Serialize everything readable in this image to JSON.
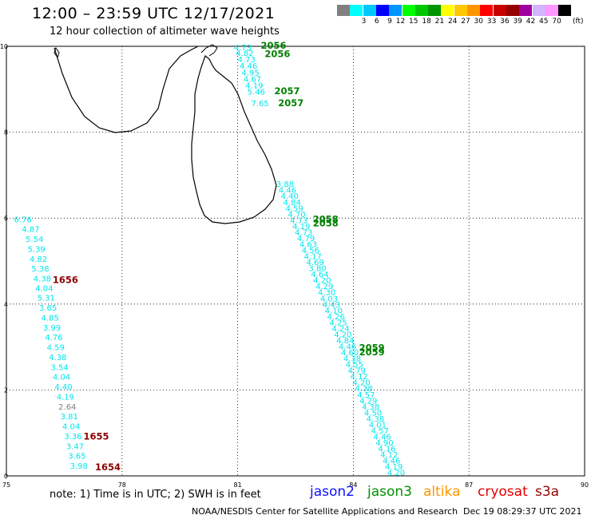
{
  "header": {
    "title": "12:00 – 23:59 UTC 12/17/2021",
    "subtitle": "12 hour collection of altimeter wave heights"
  },
  "colorbar": {
    "unit": "(ft)",
    "swatches": [
      {
        "color": "#808080",
        "label": ""
      },
      {
        "color": "#00ffff",
        "label": "3"
      },
      {
        "color": "#00c8ff",
        "label": "6"
      },
      {
        "color": "#0000ff",
        "label": "9"
      },
      {
        "color": "#0096ff",
        "label": "12"
      },
      {
        "color": "#00ff00",
        "label": "15"
      },
      {
        "color": "#00c800",
        "label": "18"
      },
      {
        "color": "#009600",
        "label": "21"
      },
      {
        "color": "#ffff00",
        "label": "24"
      },
      {
        "color": "#ffc800",
        "label": "27"
      },
      {
        "color": "#ff9600",
        "label": "30"
      },
      {
        "color": "#ff0000",
        "label": "33"
      },
      {
        "color": "#c80000",
        "label": "36"
      },
      {
        "color": "#960000",
        "label": "39"
      },
      {
        "color": "#a000a0",
        "label": "42"
      },
      {
        "color": "#d2b4ff",
        "label": "45"
      },
      {
        "color": "#ff96ff",
        "label": "70"
      },
      {
        "color": "#000000",
        "label": ""
      }
    ]
  },
  "axes": {
    "lon_min": 75,
    "lon_max": 90,
    "lat_min": 0,
    "lat_max": 10,
    "x_ticks": [
      {
        "v": 75,
        "t": "75"
      },
      {
        "v": 78,
        "t": "78"
      },
      {
        "v": 81,
        "t": "81"
      },
      {
        "v": 84,
        "t": "84"
      },
      {
        "v": 87,
        "t": "87"
      },
      {
        "v": 90,
        "t": "90"
      }
    ],
    "y_ticks": [
      {
        "v": 0,
        "t": "0"
      },
      {
        "v": 2,
        "t": "2"
      },
      {
        "v": 4,
        "t": "4"
      },
      {
        "v": 6,
        "t": "6"
      },
      {
        "v": 8,
        "t": "8"
      },
      {
        "v": 10,
        "t": "10"
      }
    ]
  },
  "colors": {
    "swh": "#00e5ee",
    "swh_low": "#808080",
    "jason3_time": "#008000",
    "cryosat_time": "#8b0000"
  },
  "tracks": {
    "west_track": [
      {
        "lon": 75.2,
        "lat": 5.98,
        "v": "6.76"
      },
      {
        "lon": 75.4,
        "lat": 5.75,
        "v": "4.87"
      },
      {
        "lon": 75.5,
        "lat": 5.52,
        "v": "5.54"
      },
      {
        "lon": 75.55,
        "lat": 5.29,
        "v": "5.39"
      },
      {
        "lon": 75.6,
        "lat": 5.06,
        "v": "4.82"
      },
      {
        "lon": 75.65,
        "lat": 4.83,
        "v": "5.38"
      },
      {
        "lon": 75.7,
        "lat": 4.6,
        "v": "4.38"
      },
      {
        "lon": 75.75,
        "lat": 4.38,
        "v": "4.04"
      },
      {
        "lon": 75.8,
        "lat": 4.15,
        "v": "5.31"
      },
      {
        "lon": 75.85,
        "lat": 3.92,
        "v": "3.65"
      },
      {
        "lon": 75.9,
        "lat": 3.69,
        "v": "4.85"
      },
      {
        "lon": 75.95,
        "lat": 3.46,
        "v": "3.99"
      },
      {
        "lon": 76.0,
        "lat": 3.23,
        "v": "4.76"
      },
      {
        "lon": 76.05,
        "lat": 3.0,
        "v": "4.59"
      },
      {
        "lon": 76.1,
        "lat": 2.77,
        "v": "4.38"
      },
      {
        "lon": 76.15,
        "lat": 2.54,
        "v": "3.54"
      },
      {
        "lon": 76.2,
        "lat": 2.31,
        "v": "4.04"
      },
      {
        "lon": 76.25,
        "lat": 2.08,
        "v": "4.40"
      },
      {
        "lon": 76.3,
        "lat": 1.85,
        "v": "4.19"
      },
      {
        "lon": 76.35,
        "lat": 1.62,
        "v": "2.64",
        "low": true
      },
      {
        "lon": 76.4,
        "lat": 1.39,
        "v": "3.81"
      },
      {
        "lon": 76.45,
        "lat": 1.16,
        "v": "4.04"
      },
      {
        "lon": 76.5,
        "lat": 0.93,
        "v": "3.36"
      },
      {
        "lon": 76.55,
        "lat": 0.7,
        "v": "3.47"
      },
      {
        "lon": 76.6,
        "lat": 0.47,
        "v": "3.65"
      },
      {
        "lon": 76.65,
        "lat": 0.24,
        "v": "3.98"
      }
    ],
    "north_track": [
      {
        "lon": 80.9,
        "lat": 9.98,
        "v": "4.73"
      },
      {
        "lon": 80.95,
        "lat": 9.85,
        "v": "4.82"
      },
      {
        "lon": 81.0,
        "lat": 9.7,
        "v": "4.73"
      },
      {
        "lon": 81.05,
        "lat": 9.55,
        "v": "4.46"
      },
      {
        "lon": 81.1,
        "lat": 9.4,
        "v": "4.95"
      },
      {
        "lon": 81.15,
        "lat": 9.25,
        "v": "4.67"
      },
      {
        "lon": 81.2,
        "lat": 9.1,
        "v": "4.19"
      },
      {
        "lon": 81.25,
        "lat": 8.95,
        "v": "5.46"
      },
      {
        "lon": 81.35,
        "lat": 8.68,
        "v": "7.65"
      }
    ],
    "east_track": [
      {
        "lon": 82.0,
        "lat": 6.8,
        "v": "3.88"
      },
      {
        "lon": 82.06,
        "lat": 6.66,
        "v": "4.46"
      },
      {
        "lon": 82.12,
        "lat": 6.52,
        "v": "4.40"
      },
      {
        "lon": 82.18,
        "lat": 6.38,
        "v": "4.84"
      },
      {
        "lon": 82.24,
        "lat": 6.24,
        "v": "4.59"
      },
      {
        "lon": 82.3,
        "lat": 6.1,
        "v": "4.70"
      },
      {
        "lon": 82.36,
        "lat": 5.96,
        "v": "4.73"
      },
      {
        "lon": 82.42,
        "lat": 5.82,
        "v": "4.19"
      },
      {
        "lon": 82.48,
        "lat": 5.68,
        "v": "4.73"
      },
      {
        "lon": 82.54,
        "lat": 5.54,
        "v": "4.79"
      },
      {
        "lon": 82.6,
        "lat": 5.4,
        "v": "4.63"
      },
      {
        "lon": 82.66,
        "lat": 5.26,
        "v": "4.56"
      },
      {
        "lon": 82.72,
        "lat": 5.12,
        "v": "4.17"
      },
      {
        "lon": 82.78,
        "lat": 4.98,
        "v": "4.69"
      },
      {
        "lon": 82.84,
        "lat": 4.84,
        "v": "3.80"
      },
      {
        "lon": 82.9,
        "lat": 4.7,
        "v": "4.64"
      },
      {
        "lon": 82.96,
        "lat": 4.56,
        "v": "4.20"
      },
      {
        "lon": 83.02,
        "lat": 4.42,
        "v": "4.29"
      },
      {
        "lon": 83.08,
        "lat": 4.28,
        "v": "4.30"
      },
      {
        "lon": 83.14,
        "lat": 4.14,
        "v": "4.03"
      },
      {
        "lon": 83.2,
        "lat": 4.0,
        "v": "4.43"
      },
      {
        "lon": 83.26,
        "lat": 3.86,
        "v": "4.10"
      },
      {
        "lon": 83.32,
        "lat": 3.72,
        "v": "4.26"
      },
      {
        "lon": 83.38,
        "lat": 3.58,
        "v": "4.25"
      },
      {
        "lon": 83.44,
        "lat": 3.44,
        "v": "4.24"
      },
      {
        "lon": 83.5,
        "lat": 3.3,
        "v": "4.20"
      },
      {
        "lon": 83.56,
        "lat": 3.16,
        "v": "4.84"
      },
      {
        "lon": 83.62,
        "lat": 3.02,
        "v": "4.46"
      },
      {
        "lon": 83.68,
        "lat": 2.88,
        "v": "4.60"
      },
      {
        "lon": 83.74,
        "lat": 2.74,
        "v": "4.38"
      },
      {
        "lon": 83.8,
        "lat": 2.6,
        "v": "4.55"
      },
      {
        "lon": 83.86,
        "lat": 2.46,
        "v": "4.79"
      },
      {
        "lon": 83.92,
        "lat": 2.32,
        "v": "4.12"
      },
      {
        "lon": 83.98,
        "lat": 2.18,
        "v": "4.20"
      },
      {
        "lon": 84.04,
        "lat": 2.04,
        "v": "4.38"
      },
      {
        "lon": 84.1,
        "lat": 1.9,
        "v": "4.57"
      },
      {
        "lon": 84.16,
        "lat": 1.76,
        "v": "4.29"
      },
      {
        "lon": 84.22,
        "lat": 1.62,
        "v": "4.38"
      },
      {
        "lon": 84.28,
        "lat": 1.48,
        "v": "4.50"
      },
      {
        "lon": 84.34,
        "lat": 1.34,
        "v": "4.38"
      },
      {
        "lon": 84.4,
        "lat": 1.2,
        "v": "4.01"
      },
      {
        "lon": 84.46,
        "lat": 1.06,
        "v": "4.57"
      },
      {
        "lon": 84.52,
        "lat": 0.92,
        "v": "4.46"
      },
      {
        "lon": 84.58,
        "lat": 0.78,
        "v": "4.90"
      },
      {
        "lon": 84.64,
        "lat": 0.64,
        "v": "4.16"
      },
      {
        "lon": 84.7,
        "lat": 0.5,
        "v": "4.12"
      },
      {
        "lon": 84.76,
        "lat": 0.36,
        "v": "4.46"
      },
      {
        "lon": 84.82,
        "lat": 0.22,
        "v": "4.19"
      },
      {
        "lon": 84.88,
        "lat": 0.08,
        "v": "4.20"
      }
    ]
  },
  "time_labels": [
    {
      "lon": 81.6,
      "lat": 10.02,
      "t": "2056",
      "sat": "jason3"
    },
    {
      "lon": 81.7,
      "lat": 9.82,
      "t": "2056",
      "sat": "jason3"
    },
    {
      "lon": 81.95,
      "lat": 8.96,
      "t": "2057",
      "sat": "jason3"
    },
    {
      "lon": 82.05,
      "lat": 8.68,
      "t": "2057",
      "sat": "jason3"
    },
    {
      "lon": 82.95,
      "lat": 5.98,
      "t": "2058",
      "sat": "jason3"
    },
    {
      "lon": 82.95,
      "lat": 5.88,
      "t": "2058",
      "sat": "jason3"
    },
    {
      "lon": 84.15,
      "lat": 2.98,
      "t": "2059",
      "sat": "jason3"
    },
    {
      "lon": 84.15,
      "lat": 2.88,
      "t": "2059",
      "sat": "jason3"
    },
    {
      "lon": 76.2,
      "lat": 4.56,
      "t": "1656",
      "sat": "cryosat"
    },
    {
      "lon": 77.0,
      "lat": 0.92,
      "t": "1655",
      "sat": "cryosat"
    },
    {
      "lon": 77.3,
      "lat": 0.2,
      "t": "1654",
      "sat": "cryosat"
    }
  ],
  "footer": {
    "note": "note: 1) Time is in UTC; 2) SWH is in feet",
    "satellites": [
      {
        "name": "jason2",
        "color": "#1010ff"
      },
      {
        "name": "jason3",
        "color": "#009000"
      },
      {
        "name": "altika",
        "color": "#ff9600"
      },
      {
        "name": "cryosat",
        "color": "#e00000"
      },
      {
        "name": "s3a",
        "color": "#960000"
      }
    ],
    "credit": "NOAA/NESDIS Center for Satellite Applications and Research",
    "generated": "Dec 19 08:29:37 UTC 2021"
  }
}
